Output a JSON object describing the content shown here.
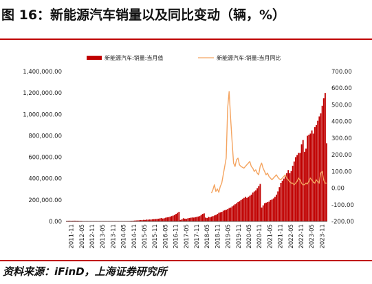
{
  "figure": {
    "title": "图 16：新能源汽车销量以及同比变动（辆，%）",
    "source": "资料来源：iFinD，上海证券研究所"
  },
  "colors": {
    "bar": "#c00000",
    "line": "#f4a460",
    "rule": "#c00000"
  },
  "chart_data": {
    "type": "bar",
    "legend_placement": "top",
    "grid": false,
    "series": [
      {
        "name": "新能源汽车:销量:当月值",
        "type": "bar",
        "axis": "left",
        "values": [
          6000,
          6500,
          6800,
          6200,
          6500,
          7000,
          6800,
          6500,
          6000,
          5500,
          5000,
          500,
          200,
          300,
          350,
          400,
          450,
          500,
          550,
          600,
          650,
          700,
          750,
          800,
          1000,
          900,
          1100,
          1200,
          1300,
          1500,
          1700,
          1800,
          1900,
          2000,
          2200,
          2400,
          2500,
          1800,
          2500,
          3000,
          3500,
          4000,
          4500,
          5000,
          6000,
          7000,
          8000,
          9000,
          10000,
          11000,
          13000,
          12000,
          15000,
          14000,
          17000,
          16000,
          18000,
          17000,
          20000,
          21000,
          22000,
          23000,
          25000,
          28000,
          32000,
          27000,
          30000,
          35000,
          38000,
          40000,
          45000,
          50000,
          55000,
          60000,
          70000,
          80000,
          90000,
          14000,
          20000,
          30000,
          25000,
          24000,
          29000,
          32000,
          35000,
          37000,
          36000,
          40000,
          42000,
          46000,
          50000,
          60000,
          70000,
          75000,
          36000,
          32000,
          42000,
          38000,
          45000,
          50000,
          56000,
          60000,
          70000,
          80000,
          85000,
          90000,
          100000,
          105000,
          110000,
          115000,
          125000,
          130000,
          140000,
          150000,
          160000,
          170000,
          180000,
          190000,
          200000,
          210000,
          220000,
          230000,
          220000,
          230000,
          240000,
          250000,
          270000,
          280000,
          290000,
          310000,
          330000,
          350000,
          130000,
          150000,
          170000,
          175000,
          180000,
          185000,
          200000,
          205000,
          215000,
          230000,
          250000,
          280000,
          320000,
          360000,
          380000,
          400000,
          420000,
          450000,
          480000,
          450000,
          470000,
          520000,
          560000,
          600000,
          620000,
          640000,
          640000,
          720000,
          760000,
          650000,
          680000,
          800000,
          810000,
          820000,
          850000,
          820000,
          880000,
          900000,
          940000,
          980000,
          1010000,
          1080000,
          1150000,
          1200000,
          730000
        ]
      },
      {
        "name": "新能源汽车:销量:当月同比",
        "type": "line",
        "axis": "right",
        "values": [
          -30,
          -10,
          20,
          -20,
          -5,
          -25,
          10,
          30,
          80,
          130,
          180,
          480,
          580,
          420,
          280,
          150,
          130,
          170,
          180,
          140,
          130,
          125,
          120,
          130,
          140,
          150,
          160,
          130,
          120,
          100,
          110,
          90,
          80,
          130,
          150,
          120,
          100,
          80,
          90,
          70,
          60,
          50,
          60,
          70,
          80,
          65,
          55,
          50,
          60,
          70,
          80,
          60,
          50,
          40,
          30,
          30,
          20,
          30,
          40,
          60,
          50,
          30,
          20,
          20,
          30,
          25,
          40,
          60,
          50,
          35,
          30,
          50,
          40,
          30,
          90,
          100,
          50,
          30,
          30
        ]
      }
    ],
    "x_tick_labels": [
      "2011-11",
      "2012-05",
      "2012-11",
      "2013-05",
      "2013-11",
      "2014-05",
      "2014-11",
      "2015-05",
      "2015-11",
      "2016-05",
      "2016-11",
      "2017-05",
      "2017-11",
      "2018-05",
      "2018-11",
      "2019-05",
      "2019-11",
      "2020-05",
      "2020-11",
      "2021-05",
      "2021-11",
      "2022-05",
      "2022-11",
      "2023-05",
      "2023-11"
    ],
    "y_left": {
      "ticks": [
        "0.00",
        "200,000.00",
        "400,000.00",
        "600,000.00",
        "800,000.00",
        "1,000,000.00",
        "1,200,000.00",
        "1,400,000.00"
      ],
      "range": [
        0,
        1400000
      ]
    },
    "y_right": {
      "ticks": [
        "-200.00",
        "-100.00",
        "0.00",
        "100.00",
        "200.00",
        "300.00",
        "400.00",
        "500.00",
        "600.00",
        "700.00"
      ],
      "range": [
        -200,
        700
      ]
    }
  }
}
